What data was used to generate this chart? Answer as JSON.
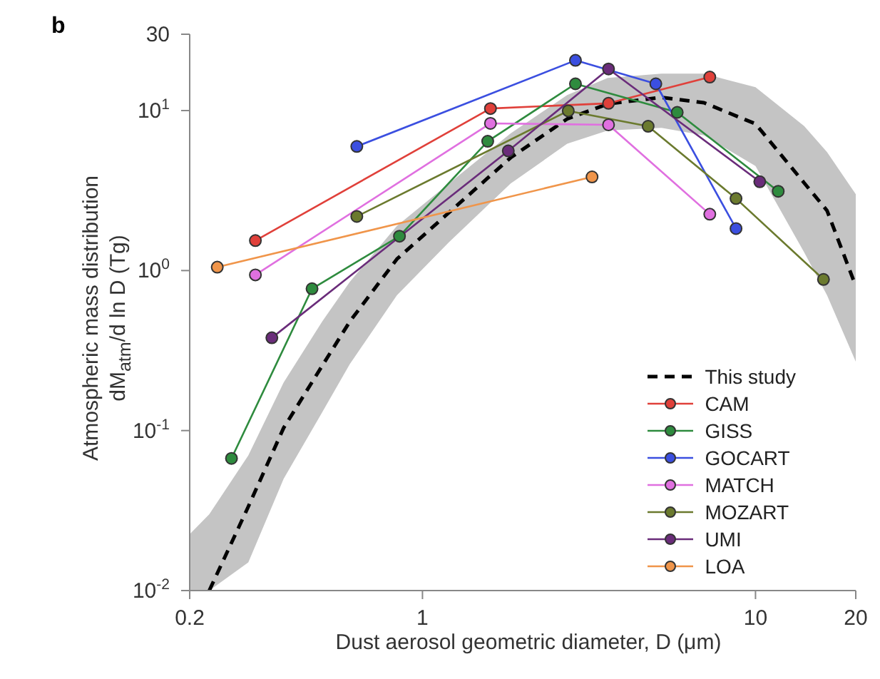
{
  "chart_data": {
    "type": "line",
    "title": "b",
    "xlabel": "Dust aerosol geometric diameter, D (μm)",
    "ylabel": "Atmospheric mass distribution dM$_{atm}$/d ln D (Tg)",
    "log": "xy",
    "xlim": [
      0.2,
      20
    ],
    "xticks": [
      0.2,
      1,
      10,
      20
    ],
    "ylim": [
      0.01,
      30
    ],
    "yticks": [
      {
        "value": 0.01,
        "label": "10$^{-2}$"
      },
      {
        "value": 0.1,
        "label": "10$^{-1}$"
      },
      {
        "value": 1,
        "label": "10$^{0}$"
      },
      {
        "value": 10,
        "label": "10$^{1}$"
      },
      30
    ],
    "legend": "bottom right",
    "marker": "circle",
    "series": [
      {
        "name": "This study",
        "color": "#000000",
        "marker": "none",
        "line_style": "dashed",
        "x": [
          0.2,
          0.229,
          0.3,
          0.383,
          0.5,
          0.605,
          0.838,
          1.2,
          1.84,
          2.72,
          3.6,
          5.22,
          7,
          10,
          14,
          16.4,
          20
        ],
        "values": [
          null,
          0.01,
          0.0335,
          0.104,
          0.254,
          0.48,
          1.18,
          2.3,
          5.08,
          8.87,
          11,
          12.1,
          11.2,
          8.26,
          3.53,
          2.37,
          0.8
        ],
        "lower": [
          0.01,
          0.01,
          0.015,
          0.05,
          0.13,
          0.26,
          0.7,
          1.5,
          3.5,
          6.2,
          7.5,
          7.8,
          7,
          4.5,
          1.3,
          0.7,
          0.27
        ],
        "upper": [
          0.0225,
          0.03,
          0.07,
          0.2,
          0.48,
          0.85,
          1.9,
          3.5,
          7.2,
          12.5,
          16,
          17,
          17,
          14,
          8,
          5.5,
          3
        ]
      },
      {
        "name": "CAM",
        "color": "#e0403a",
        "x": [
          0.315,
          1.6,
          3.62,
          7.29
        ],
        "values": [
          1.54,
          10.3,
          11.1,
          16.2
        ]
      },
      {
        "name": "GISS",
        "color": "#2e8b3e",
        "x": [
          0.267,
          0.466,
          0.853,
          1.57,
          2.88,
          5.82,
          11.7
        ],
        "values": [
          0.067,
          0.77,
          1.64,
          6.43,
          14.7,
          9.75,
          3.13
        ]
      },
      {
        "name": "GOCART",
        "color": "#3b4fe0",
        "x": [
          0.635,
          2.88,
          5.02,
          8.74
        ],
        "values": [
          5.97,
          20.6,
          14.7,
          1.83
        ]
      },
      {
        "name": "MATCH",
        "color": "#e070e0",
        "x": [
          0.315,
          1.6,
          3.62,
          7.29
        ],
        "values": [
          0.94,
          8.32,
          8.15,
          2.25
        ]
      },
      {
        "name": "MOZART",
        "color": "#6b7a2e",
        "x": [
          0.635,
          2.74,
          4.76,
          8.74,
          16.0
        ],
        "values": [
          2.18,
          9.96,
          7.98,
          2.82,
          0.88
        ]
      },
      {
        "name": "UMI",
        "color": "#6a2c7a",
        "x": [
          0.353,
          1.81,
          3.62,
          10.3
        ],
        "values": [
          0.38,
          5.6,
          18.2,
          3.59
        ]
      },
      {
        "name": "LOA",
        "color": "#f0954a",
        "x": [
          0.242,
          3.23
        ],
        "values": [
          1.05,
          3.85
        ]
      }
    ]
  }
}
